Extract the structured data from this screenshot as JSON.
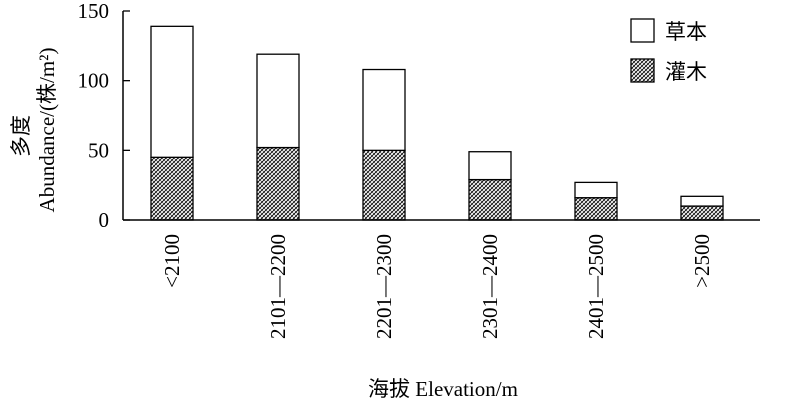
{
  "chart_data": {
    "type": "bar",
    "stacked": true,
    "categories": [
      "<2100",
      "2101—2200",
      "2201—2300",
      "2301—2400",
      "2401—2500",
      ">2500"
    ],
    "series": [
      {
        "name": "灌木",
        "values": [
          45,
          52,
          50,
          29,
          16,
          10
        ],
        "fill": "crosshatch"
      },
      {
        "name": "草本",
        "values": [
          94,
          67,
          58,
          20,
          11,
          7
        ],
        "fill": "white"
      }
    ],
    "ylabel_cn": "多度",
    "ylabel_en": "Abundance/(株/m²)",
    "xlabel": "海拔 Elevation/m",
    "ylim": [
      0,
      150
    ],
    "yticks": [
      0,
      50,
      100,
      150
    ],
    "grid": false,
    "legend_position": "top-right"
  }
}
